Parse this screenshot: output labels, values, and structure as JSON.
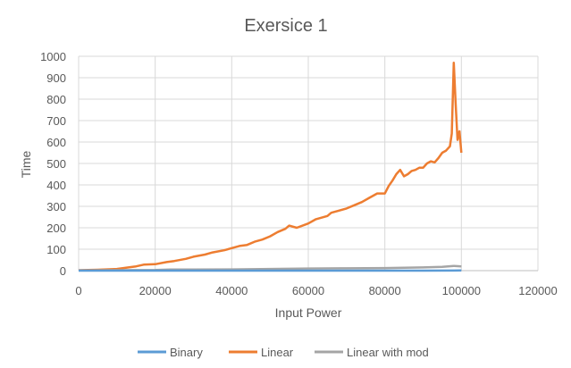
{
  "chart_data": {
    "type": "line",
    "title": "Exersice 1",
    "xlabel": "Input Power",
    "ylabel": "Time",
    "xlim": [
      0,
      120000
    ],
    "ylim": [
      0,
      1000
    ],
    "xticks": [
      0,
      20000,
      40000,
      60000,
      80000,
      100000,
      120000
    ],
    "yticks": [
      0,
      100,
      200,
      300,
      400,
      500,
      600,
      700,
      800,
      900,
      1000
    ],
    "grid": true,
    "legend_position": "bottom",
    "series": [
      {
        "name": "Binary",
        "color": "#5B9BD5",
        "x": [
          0,
          10000,
          20000,
          30000,
          40000,
          50000,
          60000,
          70000,
          80000,
          90000,
          100000
        ],
        "y": [
          0,
          0,
          0,
          0,
          0,
          0,
          0,
          0,
          0,
          0,
          1
        ]
      },
      {
        "name": "Linear",
        "color": "#ED7D31",
        "x": [
          0,
          5000,
          10000,
          13000,
          15000,
          17000,
          20000,
          23000,
          25000,
          28000,
          30000,
          33000,
          35000,
          38000,
          40000,
          42000,
          44000,
          46000,
          48000,
          50000,
          52000,
          54000,
          55000,
          57000,
          60000,
          62000,
          65000,
          66000,
          68000,
          70000,
          72000,
          74000,
          76000,
          78000,
          80000,
          81000,
          82000,
          83000,
          84000,
          85000,
          86000,
          87000,
          88000,
          89000,
          90000,
          91000,
          92000,
          93000,
          94000,
          95000,
          96000,
          97000,
          97500,
          98000,
          98500,
          99000,
          99500,
          100000
        ],
        "y": [
          2,
          4,
          8,
          15,
          20,
          28,
          30,
          40,
          45,
          55,
          65,
          75,
          85,
          95,
          105,
          115,
          120,
          135,
          145,
          160,
          180,
          195,
          210,
          200,
          220,
          240,
          255,
          270,
          280,
          290,
          305,
          320,
          340,
          360,
          360,
          395,
          420,
          450,
          470,
          440,
          450,
          465,
          470,
          480,
          480,
          500,
          510,
          505,
          525,
          550,
          560,
          580,
          640,
          970,
          780,
          610,
          650,
          550
        ]
      },
      {
        "name": "Linear with mod",
        "color": "#A5A5A5",
        "x": [
          0,
          10000,
          20000,
          24000,
          30000,
          40000,
          50000,
          60000,
          70000,
          80000,
          90000,
          95000,
          98000,
          100000
        ],
        "y": [
          1,
          2,
          3,
          5,
          5,
          6,
          8,
          10,
          11,
          12,
          15,
          18,
          22,
          20
        ]
      }
    ]
  }
}
